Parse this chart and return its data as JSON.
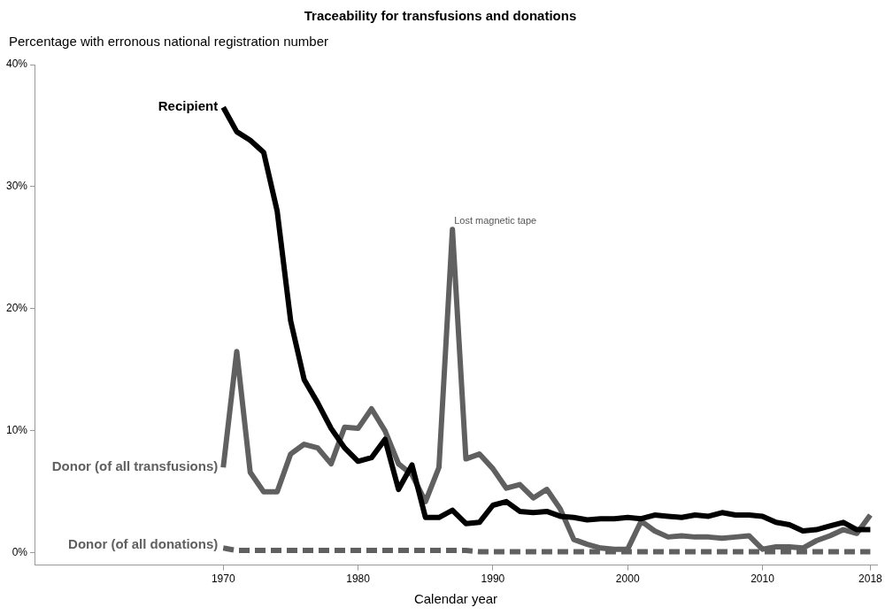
{
  "chart_data": {
    "type": "line",
    "title": "Traceability for transfusions and donations",
    "ylabel": "Percentage with erronous national registration number",
    "xlabel": "Calendar year",
    "x": [
      1970,
      1971,
      1972,
      1973,
      1974,
      1975,
      1976,
      1977,
      1978,
      1979,
      1980,
      1981,
      1982,
      1983,
      1984,
      1985,
      1986,
      1987,
      1988,
      1989,
      1990,
      1991,
      1992,
      1993,
      1994,
      1995,
      1996,
      1997,
      1998,
      1999,
      2000,
      2001,
      2002,
      2003,
      2004,
      2005,
      2006,
      2007,
      2008,
      2009,
      2010,
      2011,
      2012,
      2013,
      2014,
      2015,
      2016,
      2017,
      2018
    ],
    "series": [
      {
        "name": "Recipient",
        "color": "#000000",
        "line_style": "solid",
        "values": [
          36.5,
          34.5,
          33.8,
          32.8,
          28,
          19,
          14.2,
          12.3,
          10.2,
          8.6,
          7.5,
          7.8,
          9.3,
          5.2,
          7.2,
          2.9,
          2.9,
          3.5,
          2.4,
          2.5,
          3.9,
          4.2,
          3.4,
          3.3,
          3.4,
          3.0,
          2.9,
          2.7,
          2.8,
          2.8,
          2.9,
          2.8,
          3.1,
          3.0,
          2.9,
          3.1,
          3.0,
          3.3,
          3.1,
          3.1,
          3.0,
          2.5,
          2.3,
          1.8,
          1.9,
          2.2,
          2.5,
          1.9,
          1.9
        ]
      },
      {
        "name": "Donor (of all transfusions)",
        "color": "#606060",
        "line_style": "solid",
        "values": [
          7.0,
          16.5,
          6.6,
          5.0,
          5.0,
          8.1,
          8.9,
          8.6,
          7.3,
          10.3,
          10.2,
          11.8,
          10.0,
          7.3,
          6.4,
          4.2,
          7.0,
          26.5,
          7.7,
          8.1,
          6.9,
          5.3,
          5.6,
          4.5,
          5.2,
          3.6,
          1.1,
          0.7,
          0.4,
          0.3,
          0.3,
          2.6,
          1.8,
          1.3,
          1.4,
          1.3,
          1.3,
          1.2,
          1.3,
          1.4,
          0.3,
          0.5,
          0.5,
          0.4,
          1.0,
          1.4,
          1.9,
          1.6,
          3.1
        ]
      },
      {
        "name": "Donor (of all donations)",
        "color": "#606060",
        "line_style": "dashed",
        "values": [
          0.4,
          0.2,
          0.2,
          0.2,
          0.2,
          0.2,
          0.2,
          0.2,
          0.2,
          0.2,
          0.2,
          0.2,
          0.2,
          0.2,
          0.2,
          0.2,
          0.2,
          0.2,
          0.2,
          0.1,
          0.1,
          0.1,
          0.1,
          0.1,
          0.1,
          0.1,
          0.1,
          0.1,
          0.1,
          0.1,
          0.1,
          0.1,
          0.1,
          0.1,
          0.1,
          0.1,
          0.1,
          0.1,
          0.1,
          0.1,
          0.1,
          0.1,
          0.1,
          0.1,
          0.1,
          0.1,
          0.1,
          0.1,
          0.1
        ]
      }
    ],
    "annotations": [
      {
        "text": "Lost magnetic tape",
        "x": 1987,
        "y": 26.5
      }
    ],
    "xlim": [
      1956,
      2018.5
    ],
    "xticks": [
      1970,
      1980,
      1990,
      2000,
      2010,
      2018
    ],
    "ylim": [
      -1,
      40
    ],
    "yticks": [
      {
        "value": 0,
        "label": "0%"
      },
      {
        "value": 10,
        "label": "10%"
      },
      {
        "value": 20,
        "label": "20%"
      },
      {
        "value": 30,
        "label": "30%"
      },
      {
        "value": 40,
        "label": "40%"
      }
    ],
    "grid": false,
    "legend": false,
    "marker": "none"
  }
}
